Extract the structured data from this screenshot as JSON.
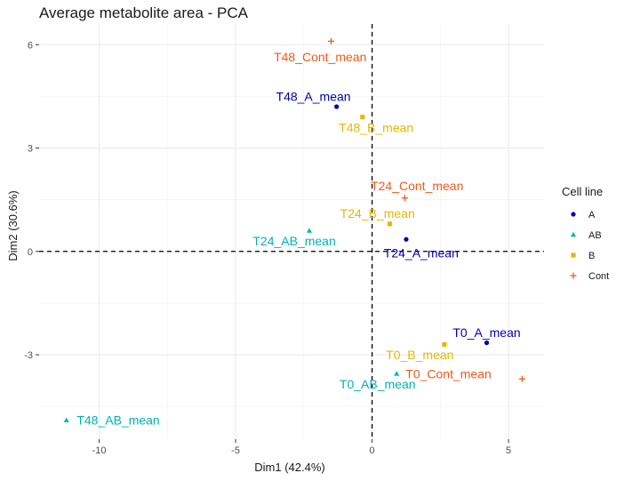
{
  "chart_data": {
    "type": "scatter",
    "title": "Average metabolite area - PCA",
    "xlabel": "Dim1 (42.4%)",
    "ylabel": "Dim2 (30.6%)",
    "xlim": [
      -12.2,
      6.3
    ],
    "ylim": [
      -5.45,
      6.6
    ],
    "xticks": [
      -10,
      -5,
      0,
      5
    ],
    "yticks": [
      -3,
      0,
      3,
      6
    ],
    "xtick_labels": [
      "-10",
      "-5",
      "0",
      "5"
    ],
    "ytick_labels": [
      "-3",
      "0",
      "3",
      "6"
    ],
    "grid": true,
    "reference_lines": {
      "x": 0,
      "y": 0,
      "style": "dashed"
    },
    "legend": {
      "title": "Cell line",
      "placement": "right",
      "entries": [
        {
          "name": "A",
          "color": "#0000b3",
          "symbol": "circle"
        },
        {
          "name": "AB",
          "color": "#00b3b3",
          "symbol": "triangle"
        },
        {
          "name": "B",
          "color": "#e6b800",
          "symbol": "square"
        },
        {
          "name": "Cont",
          "color": "#f05a1a",
          "symbol": "cross"
        }
      ]
    },
    "points": [
      {
        "label": "T48_Cont_mean",
        "group": "Cont",
        "x": -1.5,
        "y": 6.1,
        "lx": -1.9,
        "ly": 5.65
      },
      {
        "label": "T48_A_mean",
        "group": "A",
        "x": -1.3,
        "y": 4.2,
        "lx": -2.15,
        "ly": 4.5
      },
      {
        "label": "T48_B_mean",
        "group": "B",
        "x": -0.35,
        "y": 3.9,
        "lx": 0.15,
        "ly": 3.6
      },
      {
        "label": "T24_Cont_mean",
        "group": "Cont",
        "x": 1.2,
        "y": 1.55,
        "lx": 1.65,
        "ly": 1.9
      },
      {
        "label": "T24_B_mean",
        "group": "B",
        "x": 0.65,
        "y": 0.8,
        "lx": 0.2,
        "ly": 1.1
      },
      {
        "label": "T24_AB_mean",
        "group": "AB",
        "x": -2.3,
        "y": 0.6,
        "lx": -2.85,
        "ly": 0.3
      },
      {
        "label": "T24_A_mean",
        "group": "A",
        "x": 1.25,
        "y": 0.35,
        "lx": 1.8,
        "ly": -0.05
      },
      {
        "label": "T0_A_mean",
        "group": "A",
        "x": 4.2,
        "y": -2.65,
        "lx": 4.2,
        "ly": -2.35
      },
      {
        "label": "T0_B_mean",
        "group": "B",
        "x": 2.65,
        "y": -2.7,
        "lx": 1.75,
        "ly": -3.0
      },
      {
        "label": "T0_Cont_mean",
        "group": "Cont",
        "x": 5.5,
        "y": -3.7,
        "lx": 2.8,
        "ly": -3.55
      },
      {
        "label": "T0_AB_mean",
        "group": "AB",
        "x": 0.9,
        "y": -3.55,
        "lx": 0.2,
        "ly": -3.85
      },
      {
        "label": "T48_AB_mean",
        "group": "AB",
        "x": -11.2,
        "y": -4.9,
        "lx": -9.3,
        "ly": -4.9
      }
    ]
  }
}
